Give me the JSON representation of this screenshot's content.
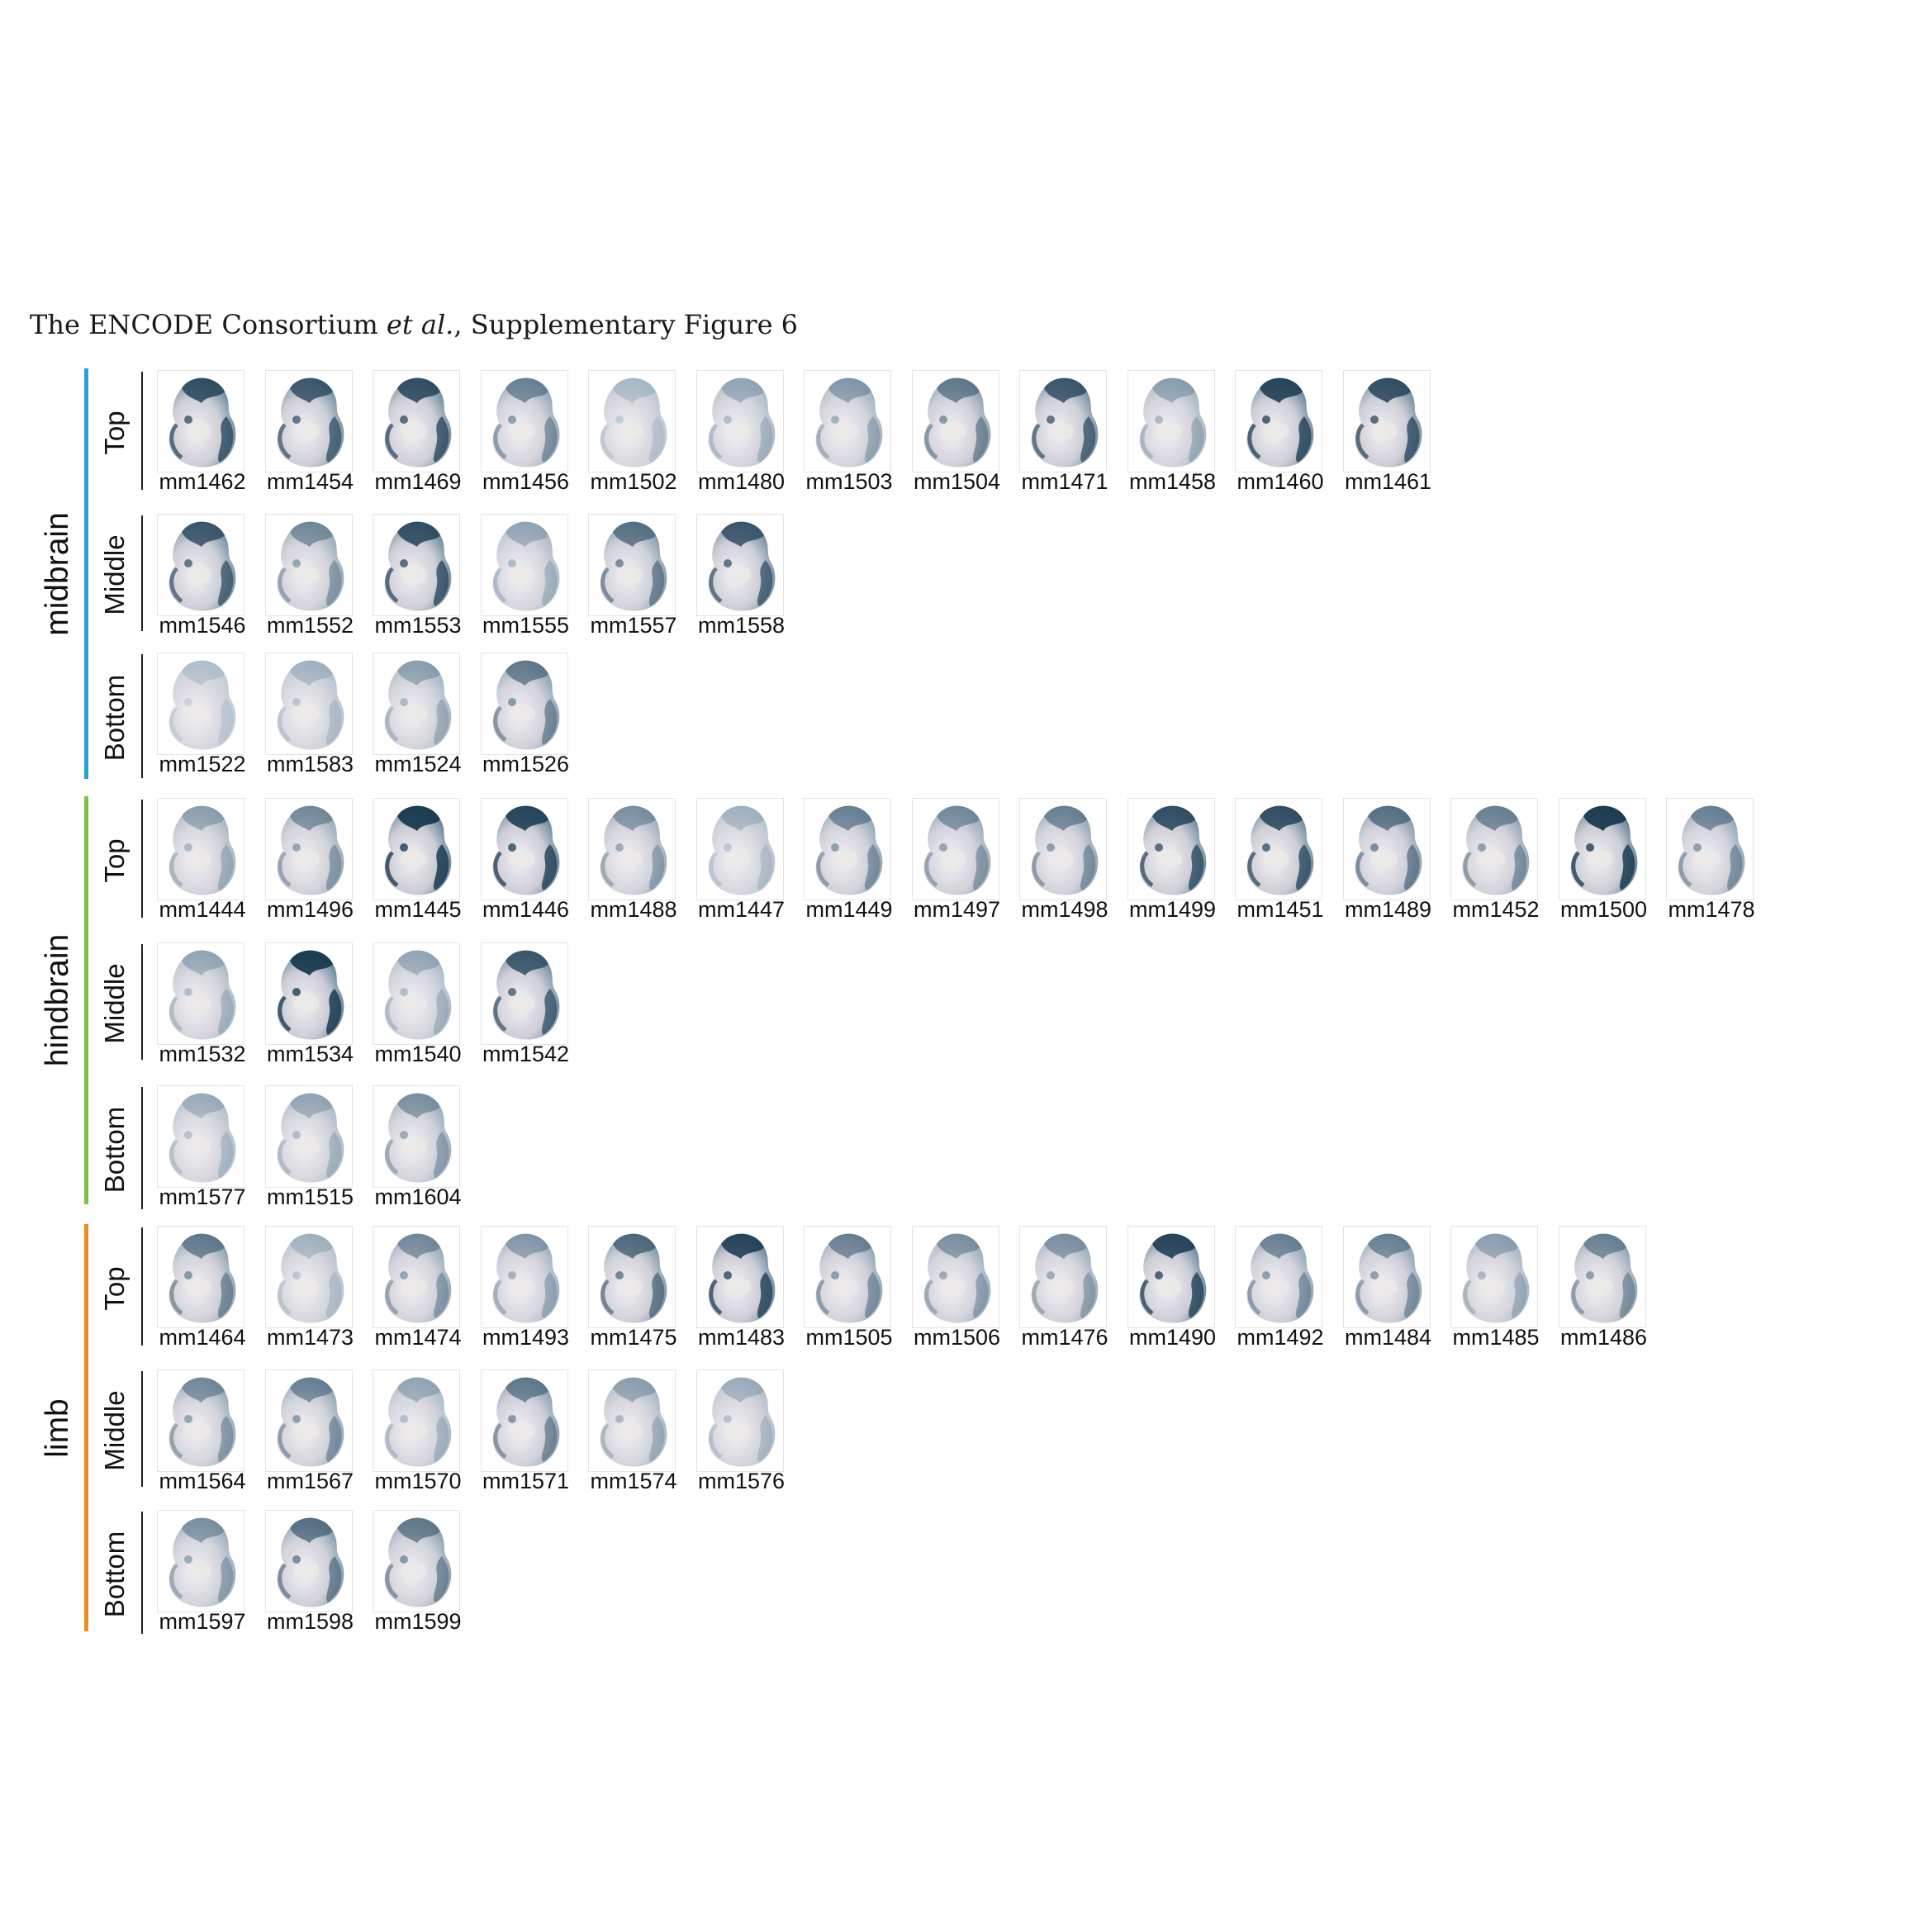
{
  "header": {
    "prefix": "The ENCODE  Consortium ",
    "italic": "et al.",
    "suffix": ", Supplementary Figure 6"
  },
  "colors": {
    "midbrain": "#2a9fd8",
    "hindbrain": "#7cc242",
    "limb": "#ef8a22"
  },
  "regions": [
    {
      "name": "midbrain",
      "tiers": [
        {
          "name": "Top",
          "embryos": [
            {
              "id": "mm1462",
              "stain": 0.85
            },
            {
              "id": "mm1454",
              "stain": 0.8
            },
            {
              "id": "mm1469",
              "stain": 0.85
            },
            {
              "id": "mm1456",
              "stain": 0.55
            },
            {
              "id": "mm1502",
              "stain": 0.15
            },
            {
              "id": "mm1480",
              "stain": 0.3
            },
            {
              "id": "mm1503",
              "stain": 0.4
            },
            {
              "id": "mm1504",
              "stain": 0.6
            },
            {
              "id": "mm1471",
              "stain": 0.8
            },
            {
              "id": "mm1458",
              "stain": 0.35
            },
            {
              "id": "mm1460",
              "stain": 0.9
            },
            {
              "id": "mm1461",
              "stain": 0.85
            }
          ]
        },
        {
          "name": "Middle",
          "embryos": [
            {
              "id": "mm1546",
              "stain": 0.8
            },
            {
              "id": "mm1552",
              "stain": 0.5
            },
            {
              "id": "mm1553",
              "stain": 0.85
            },
            {
              "id": "mm1555",
              "stain": 0.3
            },
            {
              "id": "mm1557",
              "stain": 0.65
            },
            {
              "id": "mm1558",
              "stain": 0.8
            }
          ]
        },
        {
          "name": "Bottom",
          "embryos": [
            {
              "id": "mm1522",
              "stain": 0.1
            },
            {
              "id": "mm1583",
              "stain": 0.2
            },
            {
              "id": "mm1524",
              "stain": 0.35
            },
            {
              "id": "mm1526",
              "stain": 0.6
            }
          ]
        }
      ]
    },
    {
      "name": "hindbrain",
      "tiers": [
        {
          "name": "Top",
          "embryos": [
            {
              "id": "mm1444",
              "stain": 0.35
            },
            {
              "id": "mm1496",
              "stain": 0.5
            },
            {
              "id": "mm1445",
              "stain": 0.95
            },
            {
              "id": "mm1446",
              "stain": 0.9
            },
            {
              "id": "mm1488",
              "stain": 0.45
            },
            {
              "id": "mm1447",
              "stain": 0.2
            },
            {
              "id": "mm1449",
              "stain": 0.55
            },
            {
              "id": "mm1497",
              "stain": 0.5
            },
            {
              "id": "mm1498",
              "stain": 0.55
            },
            {
              "id": "mm1499",
              "stain": 0.85
            },
            {
              "id": "mm1451",
              "stain": 0.85
            },
            {
              "id": "mm1489",
              "stain": 0.65
            },
            {
              "id": "mm1452",
              "stain": 0.55
            },
            {
              "id": "mm1500",
              "stain": 0.95
            },
            {
              "id": "mm1478",
              "stain": 0.55
            }
          ]
        },
        {
          "name": "Middle",
          "embryos": [
            {
              "id": "mm1532",
              "stain": 0.3
            },
            {
              "id": "mm1534",
              "stain": 0.95
            },
            {
              "id": "mm1540",
              "stain": 0.3
            },
            {
              "id": "mm1542",
              "stain": 0.8
            }
          ]
        },
        {
          "name": "Bottom",
          "embryos": [
            {
              "id": "mm1577",
              "stain": 0.25
            },
            {
              "id": "mm1515",
              "stain": 0.3
            },
            {
              "id": "mm1604",
              "stain": 0.45
            }
          ]
        }
      ]
    },
    {
      "name": "limb",
      "tiers": [
        {
          "name": "Top",
          "embryos": [
            {
              "id": "mm1464",
              "stain": 0.6
            },
            {
              "id": "mm1473",
              "stain": 0.2
            },
            {
              "id": "mm1474",
              "stain": 0.5
            },
            {
              "id": "mm1493",
              "stain": 0.4
            },
            {
              "id": "mm1475",
              "stain": 0.7
            },
            {
              "id": "mm1483",
              "stain": 0.9
            },
            {
              "id": "mm1505",
              "stain": 0.55
            },
            {
              "id": "mm1506",
              "stain": 0.45
            },
            {
              "id": "mm1476",
              "stain": 0.45
            },
            {
              "id": "mm1490",
              "stain": 0.9
            },
            {
              "id": "mm1492",
              "stain": 0.55
            },
            {
              "id": "mm1484",
              "stain": 0.55
            },
            {
              "id": "mm1485",
              "stain": 0.35
            },
            {
              "id": "mm1486",
              "stain": 0.55
            }
          ]
        },
        {
          "name": "Middle",
          "embryos": [
            {
              "id": "mm1564",
              "stain": 0.5
            },
            {
              "id": "mm1567",
              "stain": 0.55
            },
            {
              "id": "mm1570",
              "stain": 0.3
            },
            {
              "id": "mm1571",
              "stain": 0.6
            },
            {
              "id": "mm1574",
              "stain": 0.35
            },
            {
              "id": "mm1576",
              "stain": 0.25
            }
          ]
        },
        {
          "name": "Bottom",
          "embryos": [
            {
              "id": "mm1597",
              "stain": 0.45
            },
            {
              "id": "mm1598",
              "stain": 0.65
            },
            {
              "id": "mm1599",
              "stain": 0.6
            }
          ]
        }
      ]
    }
  ]
}
